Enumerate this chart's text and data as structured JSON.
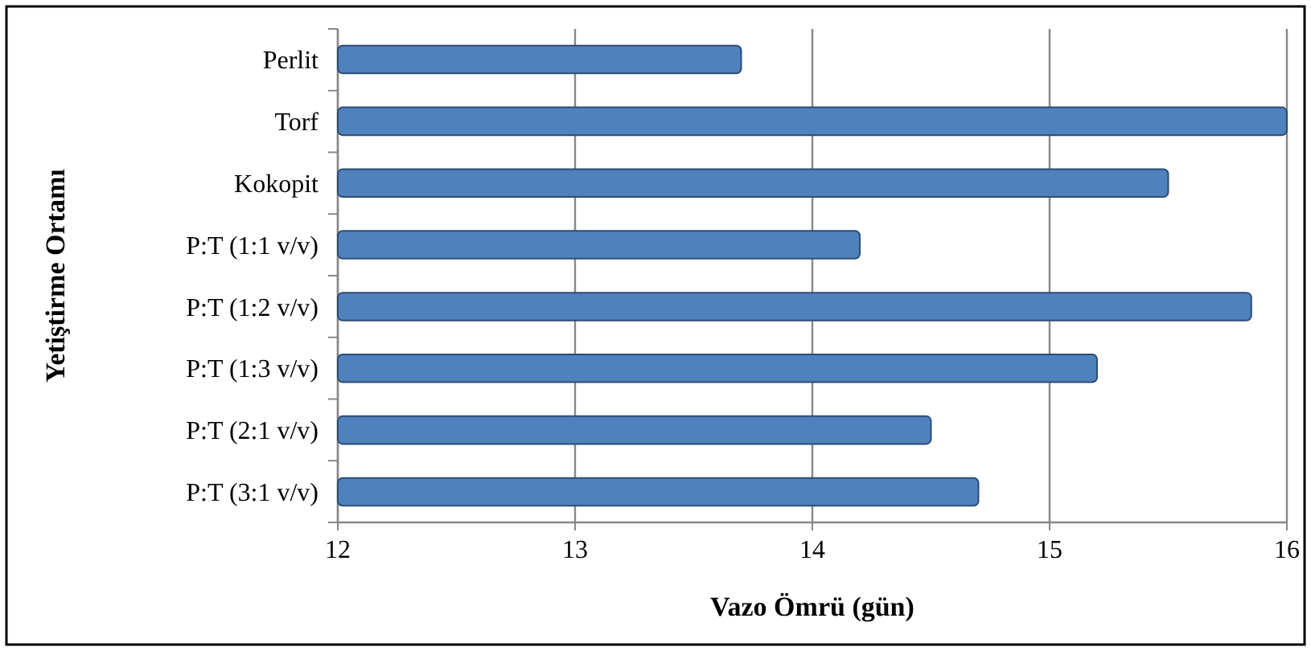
{
  "chart_data": {
    "type": "bar",
    "orientation": "horizontal",
    "categories": [
      "Perlit",
      "Torf",
      "Kokopit",
      "P:T (1:1 v/v)",
      "P:T (1:2 v/v)",
      "P:T (1:3 v/v)",
      "P:T (2:1 v/v)",
      "P:T (3:1 v/v)"
    ],
    "values": [
      13.7,
      16.0,
      15.5,
      14.2,
      15.85,
      15.2,
      14.5,
      14.7
    ],
    "color": "#4f81bd",
    "xlim": [
      12,
      16
    ],
    "xticks": [
      12,
      13,
      14,
      15,
      16
    ],
    "xlabel": "Vazo Ömrü (gün)",
    "ylabel": "Yetiştirme Ortamı",
    "grid": "x"
  }
}
